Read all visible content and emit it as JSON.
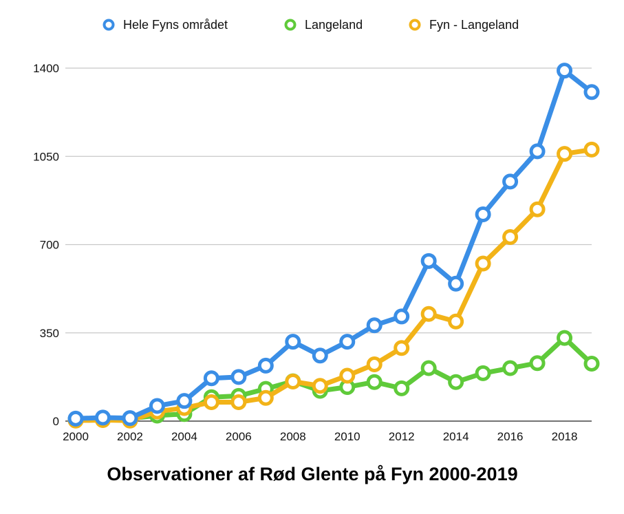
{
  "chart_data": {
    "type": "line",
    "title": "Observationer af Rød Glente på Fyn 2000-2019",
    "xlabel": "",
    "ylabel": "",
    "x": [
      2000,
      2001,
      2002,
      2003,
      2004,
      2005,
      2006,
      2007,
      2008,
      2009,
      2010,
      2011,
      2012,
      2013,
      2014,
      2015,
      2016,
      2017,
      2018,
      2019
    ],
    "x_tick_labels": [
      "2000",
      "2002",
      "2004",
      "2006",
      "2008",
      "2010",
      "2012",
      "2014",
      "2016",
      "2018"
    ],
    "y_ticks": [
      0,
      350,
      700,
      1050,
      1400
    ],
    "y_tick_labels": [
      "0",
      "350",
      "700",
      "1050",
      "1400"
    ],
    "xlim": [
      2000,
      2019
    ],
    "ylim": [
      0,
      1400
    ],
    "grid": true,
    "legend_position": "top",
    "series": [
      {
        "name": "Hele Fyns området",
        "color": "#3a8ee6",
        "values": [
          10,
          14,
          12,
          60,
          80,
          170,
          175,
          220,
          315,
          260,
          315,
          380,
          415,
          635,
          545,
          820,
          950,
          1070,
          1390,
          1305
        ]
      },
      {
        "name": "Langeland",
        "color": "#5fca3a",
        "values": [
          8,
          10,
          10,
          22,
          28,
          95,
          100,
          128,
          158,
          120,
          135,
          155,
          130,
          210,
          155,
          190,
          210,
          230,
          330,
          228
        ]
      },
      {
        "name": "Fyn - Langeland",
        "color": "#f2b318",
        "values": [
          2,
          4,
          2,
          38,
          52,
          75,
          75,
          92,
          157,
          140,
          180,
          225,
          290,
          425,
          395,
          625,
          730,
          840,
          1060,
          1077
        ]
      }
    ]
  }
}
